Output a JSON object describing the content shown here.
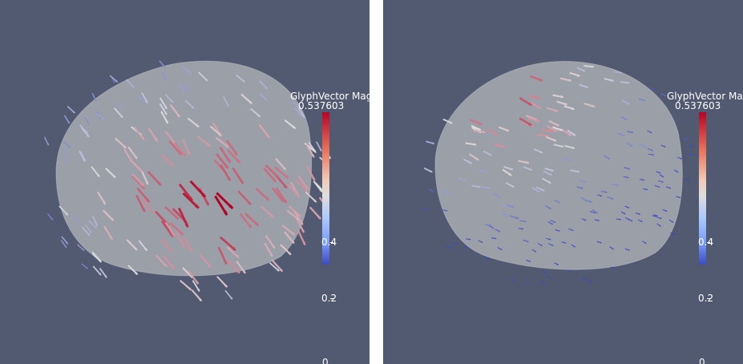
{
  "colors": {
    "background": "#525a72",
    "surface": "#a8abb0",
    "cold": "#3b4cc0",
    "neutral": "#dddddd",
    "hot": "#b40426"
  },
  "views": [
    {
      "legend": {
        "title": "GlyphVector Mag",
        "max_label": "0.537603",
        "labels": [
          "0.4",
          "0.2",
          "0"
        ]
      }
    },
    {
      "legend": {
        "title": "GlyphVector Mag",
        "max_label": "0.537603",
        "labels": [
          "0.4",
          "0.2",
          "0"
        ]
      }
    }
  ]
}
